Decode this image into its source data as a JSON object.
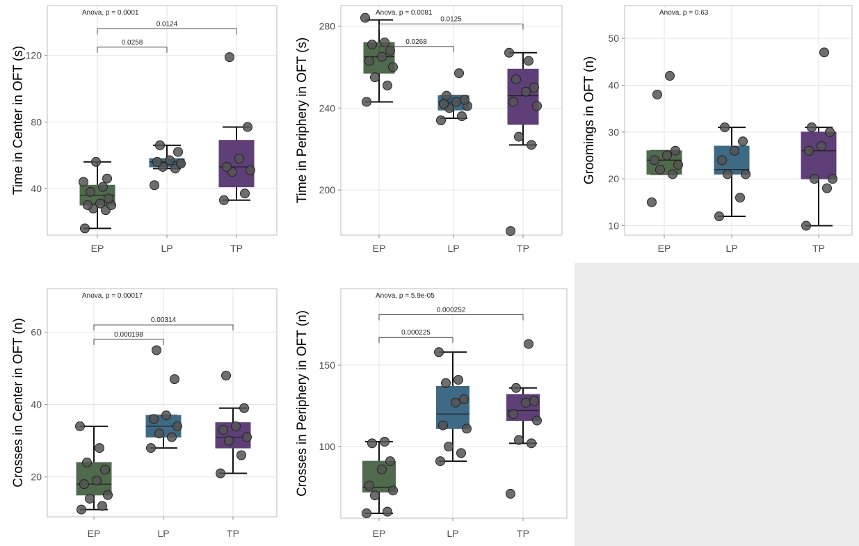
{
  "colors": {
    "EP": "#4f6a4c",
    "LP": "#3f6a86",
    "TP": "#5e3f78",
    "point": "#555555",
    "grid": "#e3e3e3",
    "border": "#bdbdbd"
  },
  "chart_data": [
    {
      "type": "box",
      "ylabel": "Time in Center in OFT (s)",
      "categories": [
        "EP",
        "LP",
        "TP"
      ],
      "ylim": [
        12,
        150
      ],
      "yticks": [
        40,
        80,
        120
      ],
      "anova": "Anova, p = 0.0001",
      "groups": [
        {
          "name": "EP",
          "box": [
            30,
            36,
            42
          ],
          "whiskers": [
            16,
            56
          ],
          "points": [
            16,
            27,
            28,
            30,
            30,
            31,
            34,
            38,
            41,
            44,
            46,
            56
          ]
        },
        {
          "name": "LP",
          "box": [
            53,
            56,
            58
          ],
          "whiskers": [
            52,
            66
          ],
          "points": [
            42,
            52,
            53,
            55,
            56,
            57,
            62,
            66
          ]
        },
        {
          "name": "TP",
          "box": [
            41,
            53,
            69
          ],
          "whiskers": [
            33,
            77
          ],
          "points": [
            33,
            37,
            50,
            51,
            53,
            58,
            77,
            119
          ]
        }
      ],
      "comparisons": [
        {
          "label": "0.0258",
          "from": 0,
          "to": 1,
          "y": 125
        },
        {
          "label": "0.0124",
          "from": 0,
          "to": 2,
          "y": 136
        }
      ]
    },
    {
      "type": "box",
      "ylabel": "Time in Periphery in OFT (s)",
      "categories": [
        "EP",
        "LP",
        "TP"
      ],
      "ylim": [
        178,
        290
      ],
      "yticks": [
        200,
        240,
        280
      ],
      "anova": "Anova, p = 0.0081",
      "groups": [
        {
          "name": "EP",
          "box": [
            257,
            265,
            272
          ],
          "whiskers": [
            243,
            283
          ],
          "points": [
            243,
            251,
            255,
            260,
            263,
            265,
            268,
            271,
            272,
            284
          ]
        },
        {
          "name": "LP",
          "box": [
            239,
            243,
            246
          ],
          "whiskers": [
            235,
            246
          ],
          "points": [
            234,
            236,
            240,
            241,
            242,
            243,
            244,
            246,
            257
          ]
        },
        {
          "name": "TP",
          "box": [
            232,
            246,
            259
          ],
          "whiskers": [
            222,
            267
          ],
          "points": [
            180,
            222,
            226,
            241,
            243,
            248,
            250,
            254,
            263,
            267
          ]
        }
      ],
      "comparisons": [
        {
          "label": "0.0268",
          "from": 0,
          "to": 1,
          "y": 270
        },
        {
          "label": "0.0125",
          "from": 0,
          "to": 2,
          "y": 281
        }
      ]
    },
    {
      "type": "box",
      "ylabel": "Groomings in OFT (n)",
      "categories": [
        "EP",
        "LP",
        "TP"
      ],
      "ylim": [
        8,
        57
      ],
      "yticks": [
        10,
        20,
        30,
        40,
        50
      ],
      "anova": "Anova, p = 0.63",
      "groups": [
        {
          "name": "EP",
          "box": [
            21,
            24,
            26
          ],
          "whiskers": [
            21,
            26
          ],
          "points": [
            15,
            21,
            22,
            23,
            24,
            25,
            26,
            38,
            42
          ]
        },
        {
          "name": "LP",
          "box": [
            21,
            22,
            27
          ],
          "whiskers": [
            12,
            31
          ],
          "points": [
            12,
            16,
            21,
            21,
            24,
            26,
            28,
            31
          ]
        },
        {
          "name": "TP",
          "box": [
            20,
            26,
            30
          ],
          "whiskers": [
            10,
            31
          ],
          "points": [
            10,
            18,
            20,
            20,
            26,
            27,
            30,
            31,
            47
          ]
        }
      ],
      "comparisons": []
    },
    {
      "type": "box",
      "ylabel": "Crosses in Center in OFT (n)",
      "categories": [
        "EP",
        "LP",
        "TP"
      ],
      "ylim": [
        9,
        72
      ],
      "yticks": [
        20,
        40,
        60
      ],
      "anova": "Anova, p = 0.00017",
      "groups": [
        {
          "name": "EP",
          "box": [
            15,
            18,
            24
          ],
          "whiskers": [
            11,
            34
          ],
          "points": [
            11,
            12,
            14,
            15,
            18,
            19,
            22,
            24,
            28,
            34
          ]
        },
        {
          "name": "LP",
          "box": [
            31,
            34,
            37
          ],
          "whiskers": [
            28,
            37
          ],
          "points": [
            28,
            31,
            32,
            34,
            36,
            37,
            47,
            55
          ]
        },
        {
          "name": "TP",
          "box": [
            28,
            31,
            35
          ],
          "whiskers": [
            21,
            39
          ],
          "points": [
            21,
            26,
            30,
            31,
            33,
            34,
            39,
            48
          ]
        }
      ],
      "comparisons": [
        {
          "label": "0.000198",
          "from": 0,
          "to": 1,
          "y": 58
        },
        {
          "label": "0.00314",
          "from": 0,
          "to": 2,
          "y": 62
        }
      ]
    },
    {
      "type": "box",
      "ylabel": "Crosses in Periphery in OFT (n)",
      "categories": [
        "EP",
        "LP",
        "TP"
      ],
      "ylim": [
        56,
        197
      ],
      "yticks": [
        100,
        150
      ],
      "anova": "Anova, p = 5.9e-05",
      "groups": [
        {
          "name": "EP",
          "box": [
            72,
            75,
            91
          ],
          "whiskers": [
            59,
            103
          ],
          "points": [
            59,
            60,
            70,
            73,
            76,
            86,
            91,
            102,
            103
          ]
        },
        {
          "name": "LP",
          "box": [
            111,
            120,
            137
          ],
          "whiskers": [
            91,
            158
          ],
          "points": [
            91,
            96,
            100,
            111,
            113,
            127,
            129,
            139,
            141,
            158
          ]
        },
        {
          "name": "TP",
          "box": [
            116,
            122,
            132
          ],
          "whiskers": [
            102,
            136
          ],
          "points": [
            71,
            102,
            104,
            116,
            120,
            127,
            128,
            136,
            163
          ]
        }
      ],
      "comparisons": [
        {
          "label": "0.000225",
          "from": 0,
          "to": 1,
          "y": 167
        },
        {
          "label": "0.000252",
          "from": 0,
          "to": 2,
          "y": 181
        }
      ]
    }
  ]
}
